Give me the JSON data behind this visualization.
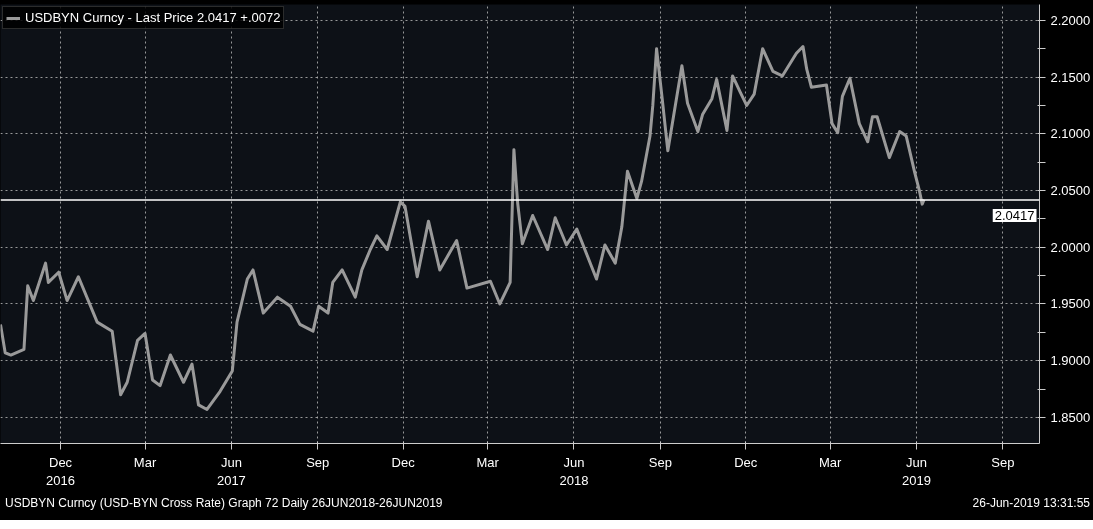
{
  "chart_data": {
    "type": "line",
    "x": [
      "2016-09-28",
      "2016-10-03",
      "2016-10-09",
      "2016-10-23",
      "2016-10-27",
      "2016-11-02",
      "2016-11-15",
      "2016-11-18",
      "2016-11-29",
      "2016-12-08",
      "2016-12-20",
      "2017-01-09",
      "2017-01-25",
      "2017-02-03",
      "2017-02-10",
      "2017-02-21",
      "2017-03-01",
      "2017-03-09",
      "2017-03-17",
      "2017-03-28",
      "2017-04-11",
      "2017-04-20",
      "2017-04-27",
      "2017-05-06",
      "2017-05-20",
      "2017-06-02",
      "2017-06-07",
      "2017-06-18",
      "2017-06-24",
      "2017-07-05",
      "2017-07-20",
      "2017-08-03",
      "2017-08-13",
      "2017-08-27",
      "2017-09-02",
      "2017-09-12",
      "2017-09-17",
      "2017-09-27",
      "2017-10-11",
      "2017-10-18",
      "2017-10-27",
      "2017-11-03",
      "2017-11-14",
      "2017-11-28",
      "2017-12-03",
      "2017-12-16",
      "2017-12-28",
      "2018-01-09",
      "2018-01-27",
      "2018-02-07",
      "2018-03-04",
      "2018-03-14",
      "2018-03-25",
      "2018-03-29",
      "2018-04-02",
      "2018-04-07",
      "2018-04-18",
      "2018-05-04",
      "2018-05-12",
      "2018-05-24",
      "2018-06-04",
      "2018-06-25",
      "2018-07-04",
      "2018-07-15",
      "2018-07-22",
      "2018-07-28",
      "2018-08-07",
      "2018-08-12",
      "2018-08-21",
      "2018-08-24",
      "2018-08-28",
      "2018-09-03",
      "2018-09-09",
      "2018-09-24",
      "2018-09-30",
      "2018-10-11",
      "2018-10-16",
      "2018-10-26",
      "2018-10-31",
      "2018-11-11",
      "2018-11-17",
      "2018-11-25",
      "2018-12-02",
      "2018-12-10",
      "2018-12-19",
      "2018-12-30",
      "2019-01-09",
      "2019-01-24",
      "2019-01-31",
      "2019-02-04",
      "2019-02-09",
      "2019-02-25",
      "2019-03-03",
      "2019-03-09",
      "2019-03-14",
      "2019-03-22",
      "2019-04-01",
      "2019-04-10",
      "2019-04-15",
      "2019-04-20",
      "2019-05-03",
      "2019-05-14",
      "2019-05-21",
      "2019-05-30",
      "2019-06-04",
      "2019-06-07",
      "2019-06-09"
    ],
    "series": [
      {
        "name": "USDBYN Curncy - Last Price 2.0417 +.0072",
        "color": "#9a9a9a",
        "values": [
          1.932,
          1.907,
          1.905,
          1.91,
          1.966,
          1.953,
          1.986,
          1.969,
          1.978,
          1.953,
          1.974,
          1.934,
          1.926,
          1.87,
          1.881,
          1.918,
          1.924,
          1.883,
          1.878,
          1.905,
          1.881,
          1.897,
          1.861,
          1.857,
          1.873,
          1.891,
          1.934,
          1.972,
          1.98,
          1.942,
          1.956,
          1.948,
          1.932,
          1.926,
          1.948,
          1.942,
          1.969,
          1.98,
          1.956,
          1.98,
          1.998,
          2.01,
          1.998,
          2.04,
          2.036,
          1.974,
          2.023,
          1.98,
          2.006,
          1.964,
          1.97,
          1.95,
          1.969,
          2.086,
          2.039,
          2.003,
          2.028,
          1.998,
          2.026,
          2.002,
          2.016,
          1.972,
          2.002,
          1.986,
          2.018,
          2.067,
          2.043,
          2.058,
          2.098,
          2.125,
          2.175,
          2.131,
          2.085,
          2.16,
          2.127,
          2.102,
          2.117,
          2.131,
          2.148,
          2.103,
          2.151,
          2.137,
          2.125,
          2.135,
          2.175,
          2.155,
          2.151,
          2.171,
          2.177,
          2.157,
          2.141,
          2.143,
          2.109,
          2.101,
          2.133,
          2.149,
          2.109,
          2.093,
          2.115,
          2.115,
          2.079,
          2.102,
          2.098,
          2.066,
          2.05,
          2.038,
          2.042
        ]
      }
    ],
    "xlim": [
      "2016-09-28",
      "2019-10-10"
    ],
    "xticks": [
      {
        "value": "2016-12-01",
        "label": "Dec\n2016"
      },
      {
        "value": "2017-03-01",
        "label": "Mar"
      },
      {
        "value": "2017-06-01",
        "label": "Jun\n2017"
      },
      {
        "value": "2017-09-01",
        "label": "Sep"
      },
      {
        "value": "2017-12-01",
        "label": "Dec"
      },
      {
        "value": "2018-03-01",
        "label": "Mar"
      },
      {
        "value": "2018-06-01",
        "label": "Jun\n2018"
      },
      {
        "value": "2018-09-01",
        "label": "Sep"
      },
      {
        "value": "2018-12-01",
        "label": "Dec"
      },
      {
        "value": "2019-03-01",
        "label": "Mar"
      },
      {
        "value": "2019-06-01",
        "label": "Jun\n2019"
      },
      {
        "value": "2019-09-01",
        "label": "Sep"
      }
    ],
    "ylim": [
      1.827,
      2.214
    ],
    "yticks": [
      {
        "value": 1.85,
        "label": "1.8500"
      },
      {
        "value": 1.875,
        "label": null
      },
      {
        "value": 1.9,
        "label": "1.9000"
      },
      {
        "value": 1.925,
        "label": null
      },
      {
        "value": 1.95,
        "label": "1.9500"
      },
      {
        "value": 1.975,
        "label": null
      },
      {
        "value": 2.0,
        "label": "2.0000"
      },
      {
        "value": 2.025,
        "label": null
      },
      {
        "value": 2.05,
        "label": "2.0500"
      },
      {
        "value": 2.075,
        "label": null
      },
      {
        "value": 2.1,
        "label": "2.1000"
      },
      {
        "value": 2.125,
        "label": null
      },
      {
        "value": 2.15,
        "label": "2.1500"
      },
      {
        "value": 2.175,
        "label": null
      },
      {
        "value": 2.2,
        "label": "2.2000"
      }
    ],
    "ref_lines": [
      {
        "axis": "y",
        "value": 2.0417,
        "label": "2.0417",
        "color": "#ffffff"
      }
    ],
    "grid": true,
    "legend": "top left",
    "line_style": "solid",
    "marker": "none",
    "annotations": [
      "USDBYN Curncy (USD-BYN Cross Rate) Graph 72  Daily 26JUN2018-26JUN2019",
      "26-Jun-2019 13:31:55"
    ]
  }
}
